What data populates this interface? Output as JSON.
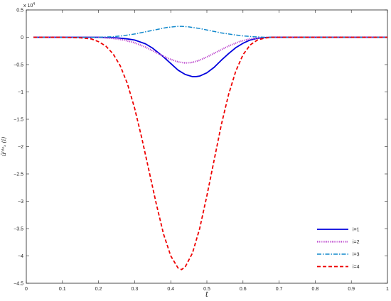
{
  "chart_data": {
    "type": "line",
    "xlabel": "t",
    "ylabel": "ūᴵᵈᵃₓ (i)",
    "y_multiplier": "x 10",
    "y_multiplier_exp": "4",
    "xlim": [
      0,
      1
    ],
    "ylim": [
      -4.5,
      0.5
    ],
    "grid": false,
    "legend_position": "bottom-right",
    "x_ticks": [
      0,
      0.1,
      0.2,
      0.3,
      0.4,
      0.5,
      0.6,
      0.7,
      0.8,
      0.9,
      1
    ],
    "x_tick_labels": [
      "0",
      "0.1",
      "0.2",
      "0.3",
      "0.4",
      "0.5",
      "0.6",
      "0.7",
      "0.8",
      "0.9",
      "1"
    ],
    "y_ticks": [
      0.5,
      0,
      -0.5,
      -1,
      -1.5,
      -2,
      -2.5,
      -3,
      -3.5,
      -4,
      -4.5
    ],
    "y_tick_labels": [
      "0.5",
      "0",
      "−0.5",
      "−1",
      "−1.5",
      "−2",
      "−2.5",
      "−3",
      "−3.5",
      "−4",
      "−4.5"
    ],
    "series": [
      {
        "name": "i=1",
        "color": "#0000dd",
        "dash": "solid",
        "x": [
          0.02,
          0.1,
          0.2,
          0.25,
          0.28,
          0.3,
          0.33,
          0.35,
          0.38,
          0.4,
          0.42,
          0.44,
          0.46,
          0.47,
          0.48,
          0.5,
          0.52,
          0.54,
          0.56,
          0.58,
          0.6,
          0.62,
          0.64,
          0.66,
          0.68,
          0.7,
          0.8,
          0.9,
          1.0
        ],
        "y": [
          0,
          0,
          0,
          -0.01,
          -0.03,
          -0.05,
          -0.12,
          -0.2,
          -0.36,
          -0.48,
          -0.6,
          -0.68,
          -0.72,
          -0.72,
          -0.71,
          -0.65,
          -0.55,
          -0.42,
          -0.3,
          -0.19,
          -0.11,
          -0.05,
          -0.02,
          -0.005,
          0,
          0,
          0,
          0,
          0
        ]
      },
      {
        "name": "i=2",
        "color": "#bb44cc",
        "dash": "dotted",
        "x": [
          0.02,
          0.1,
          0.2,
          0.24,
          0.27,
          0.3,
          0.33,
          0.36,
          0.39,
          0.42,
          0.44,
          0.46,
          0.48,
          0.5,
          0.53,
          0.56,
          0.59,
          0.62,
          0.65,
          0.68,
          0.7,
          0.8,
          0.9,
          1.0
        ],
        "y": [
          0,
          0,
          0,
          -0.02,
          -0.05,
          -0.1,
          -0.18,
          -0.28,
          -0.38,
          -0.45,
          -0.47,
          -0.46,
          -0.42,
          -0.36,
          -0.26,
          -0.16,
          -0.08,
          -0.03,
          -0.01,
          0,
          0,
          0,
          0,
          0
        ]
      },
      {
        "name": "i=3",
        "color": "#1188cc",
        "dash": "dashdot",
        "x": [
          0.02,
          0.1,
          0.2,
          0.24,
          0.27,
          0.3,
          0.33,
          0.36,
          0.39,
          0.42,
          0.43,
          0.45,
          0.48,
          0.51,
          0.54,
          0.57,
          0.6,
          0.63,
          0.66,
          0.7,
          0.8,
          0.9,
          1.0
        ],
        "y": [
          0,
          0,
          0,
          0.01,
          0.03,
          0.06,
          0.1,
          0.14,
          0.18,
          0.2,
          0.2,
          0.19,
          0.16,
          0.12,
          0.08,
          0.05,
          0.025,
          0.01,
          0,
          0,
          0,
          0,
          0
        ]
      },
      {
        "name": "i=4",
        "color": "#ee0000",
        "dash": "dashed",
        "x": [
          0.02,
          0.1,
          0.15,
          0.18,
          0.2,
          0.22,
          0.24,
          0.26,
          0.28,
          0.3,
          0.32,
          0.34,
          0.36,
          0.38,
          0.4,
          0.42,
          0.43,
          0.44,
          0.46,
          0.48,
          0.5,
          0.52,
          0.54,
          0.56,
          0.58,
          0.6,
          0.62,
          0.64,
          0.66,
          0.68,
          0.7,
          0.8,
          0.9,
          1.0
        ],
        "y": [
          0,
          0,
          -0.01,
          -0.03,
          -0.08,
          -0.16,
          -0.3,
          -0.52,
          -0.85,
          -1.3,
          -1.85,
          -2.45,
          -3.05,
          -3.6,
          -4.0,
          -4.22,
          -4.25,
          -4.2,
          -3.95,
          -3.5,
          -2.9,
          -2.25,
          -1.6,
          -1.05,
          -0.62,
          -0.32,
          -0.14,
          -0.05,
          -0.015,
          0,
          0,
          0,
          0,
          0
        ]
      }
    ]
  }
}
